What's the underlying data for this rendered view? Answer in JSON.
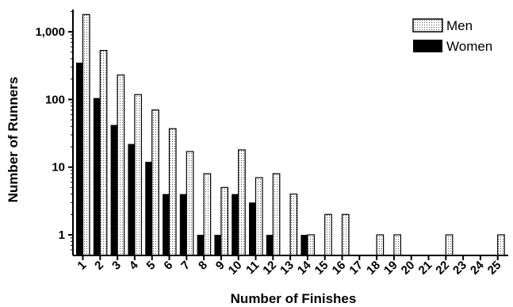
{
  "chart_data": {
    "type": "bar",
    "title": "",
    "xlabel": "Number of Finishes",
    "ylabel": "Number of Runners",
    "yscale": "log",
    "ylim": [
      0.55,
      2000
    ],
    "yticks": [
      1,
      10,
      100,
      1000
    ],
    "ytick_labels": [
      "1",
      "10",
      "100",
      "1,000"
    ],
    "grid": false,
    "legend_position": "top-right",
    "categories": [
      "1",
      "2",
      "3",
      "4",
      "5",
      "6",
      "7",
      "8",
      "9",
      "10",
      "11",
      "12",
      "13",
      "14",
      "15",
      "16",
      "17",
      "18",
      "19",
      "20",
      "21",
      "22",
      "23",
      "24",
      "25"
    ],
    "series": [
      {
        "name": "Women",
        "style": "solid",
        "color": "#000000",
        "values": [
          350,
          105,
          42,
          22,
          12,
          4,
          4,
          1,
          1,
          4,
          3,
          1,
          0,
          1,
          0,
          0,
          0,
          0,
          0,
          0,
          0,
          0,
          0,
          0,
          0
        ]
      },
      {
        "name": "Men",
        "style": "dotted-outline",
        "color": "#ffffff",
        "values": [
          1800,
          530,
          230,
          118,
          70,
          37,
          17,
          8,
          5,
          18,
          7,
          8,
          4,
          1,
          2,
          2,
          0,
          1,
          1,
          0,
          0,
          1,
          0,
          0,
          1
        ]
      }
    ],
    "legend": [
      {
        "series": "Men",
        "label": "Men"
      },
      {
        "series": "Women",
        "label": "Women"
      }
    ]
  }
}
